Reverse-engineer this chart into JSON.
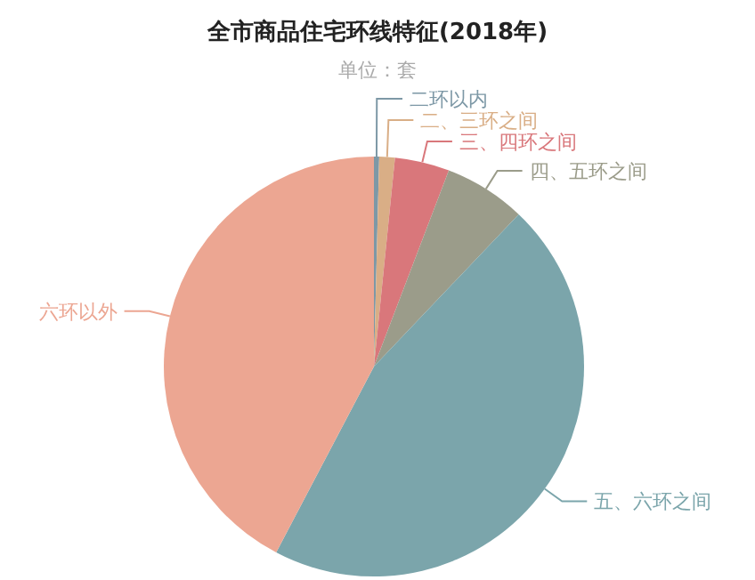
{
  "chart_data": {
    "type": "pie",
    "title": "全市商品住宅环线特征(2018年)",
    "subtitle": "单位：套",
    "categories": [
      "二环以内",
      "二、三环之间",
      "三、四环之间",
      "四、五环之间",
      "五、六环之间",
      "六环以外"
    ],
    "values": [
      0.4,
      1.2,
      4.2,
      6.3,
      45.6,
      42.3
    ],
    "colors": [
      "#7d98a6",
      "#d9ae86",
      "#d9777b",
      "#9b9c8a",
      "#7ba5ab",
      "#eca692"
    ]
  }
}
